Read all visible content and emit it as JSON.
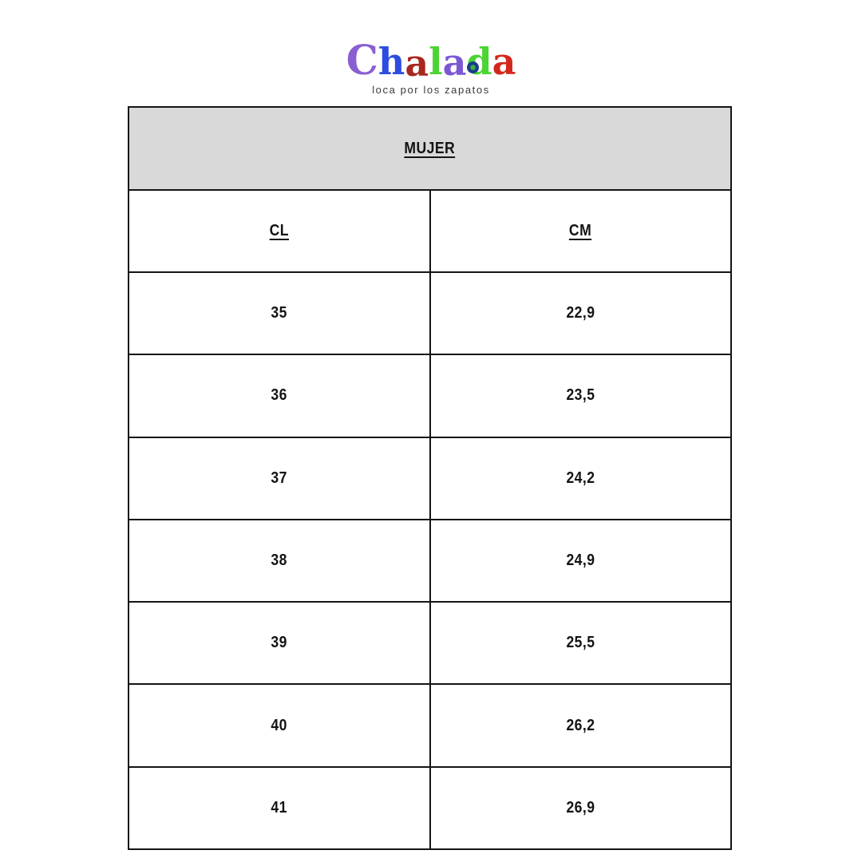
{
  "logo": {
    "letters": [
      {
        "char": "C",
        "color": "#8a5fd0"
      },
      {
        "char": "h",
        "color": "#2d4ce0"
      },
      {
        "char": "a",
        "color": "#a8281e"
      },
      {
        "char": "l",
        "color": "#4cd434"
      },
      {
        "char": "a",
        "color": "#7b57d4"
      },
      {
        "char": "d",
        "color": "#4cd434"
      },
      {
        "char": "a",
        "color": "#d2281c"
      }
    ],
    "tagline": "loca por los zapatos"
  },
  "size_chart": {
    "title": "MUJER",
    "columns": [
      "CL",
      "CM"
    ],
    "rows": [
      [
        "35",
        "22,9"
      ],
      [
        "36",
        "23,5"
      ],
      [
        "37",
        "24,2"
      ],
      [
        "38",
        "24,9"
      ],
      [
        "39",
        "25,5"
      ],
      [
        "40",
        "26,2"
      ],
      [
        "41",
        "26,9"
      ]
    ]
  },
  "colors": {
    "header_bg": "#d9d9d9",
    "border": "#141414",
    "text": "#141414"
  }
}
